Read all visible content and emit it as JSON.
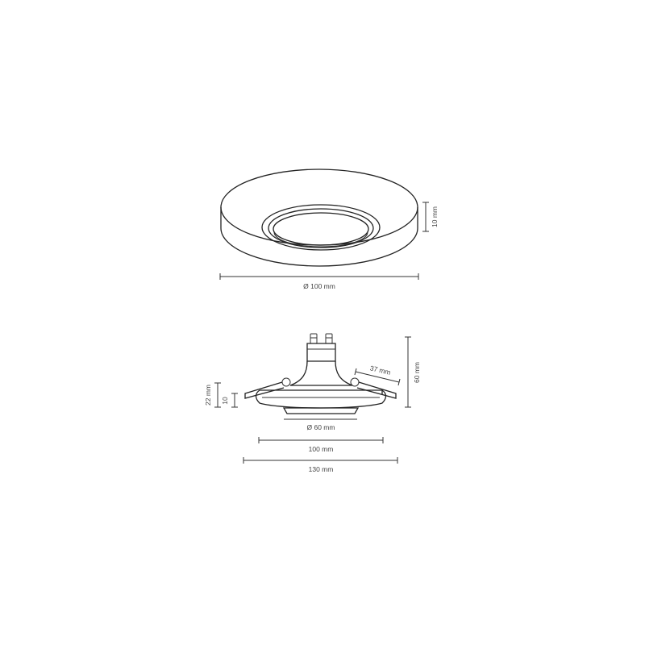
{
  "top_view": {
    "height_label": "10 mm",
    "diameter_label": "Ø 100 mm"
  },
  "side_view": {
    "height_total_label": "60 mm",
    "angle_label": "37 mm",
    "left_height_label": "22 mm",
    "left_inner_label": "10",
    "inner_diameter_label": "Ø 60 mm",
    "width_label": "100 mm",
    "overall_width_label": "130 mm"
  },
  "colors": {
    "stroke": "#333333",
    "text": "#444444",
    "background": "#ffffff"
  }
}
